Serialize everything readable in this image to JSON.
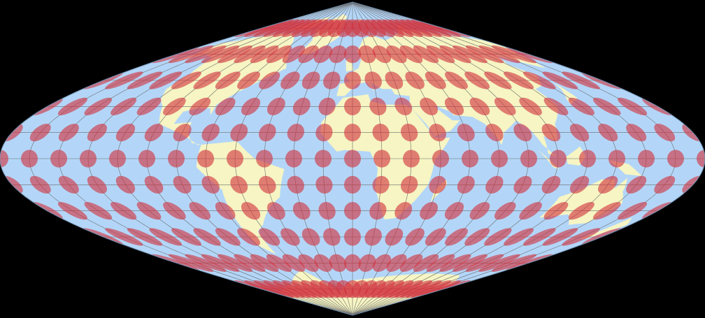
{
  "map": {
    "projection": "sinusoidal",
    "overlay": "tissot-indicatrix",
    "graticule_step_deg": 15,
    "indicatrix_step_deg": 15,
    "colors": {
      "background": "#000000",
      "ocean": "#b3d6f8",
      "land": "#f6f5c3",
      "graticule": "#6b6b6b",
      "outline": "#6f8fb0",
      "indicatrix": "#d2333f"
    }
  }
}
